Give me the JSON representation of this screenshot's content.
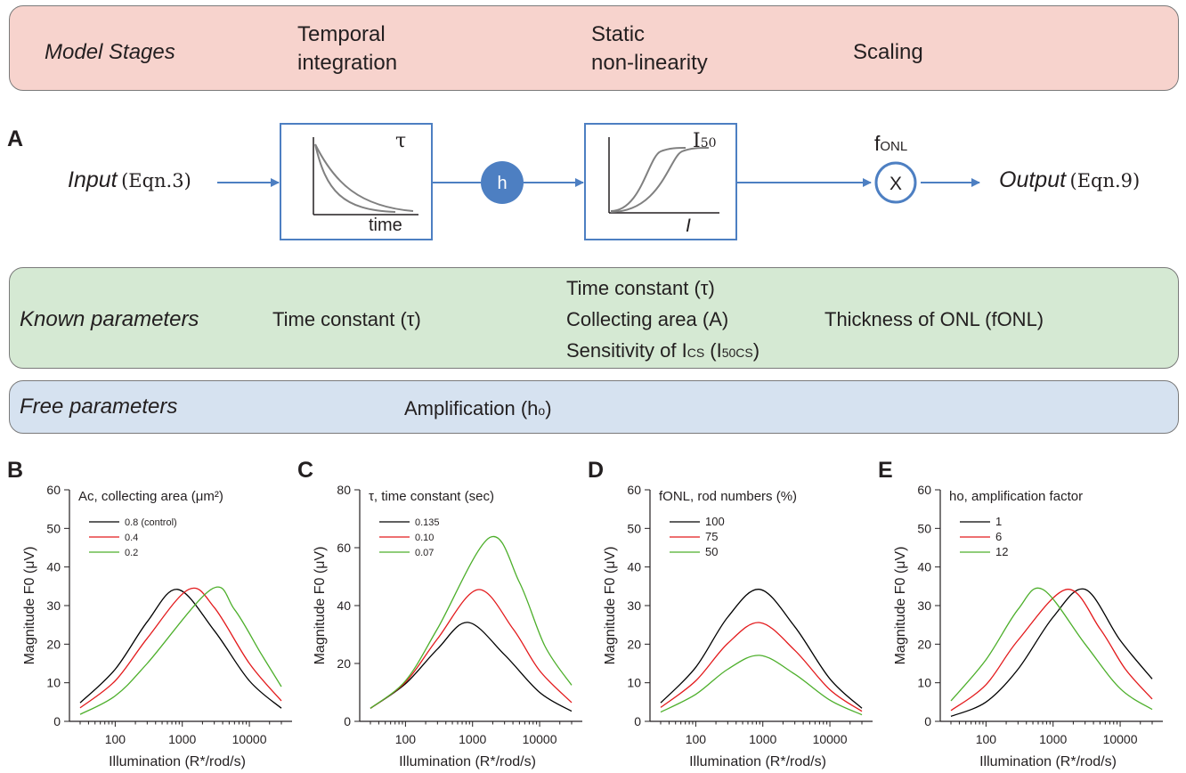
{
  "stages": {
    "title": "Model Stages",
    "temporal": [
      "Temporal",
      "integration"
    ],
    "static": [
      "Static",
      "non-linearity"
    ],
    "scaling": "Scaling"
  },
  "diagram": {
    "panel_label": "A",
    "input_word": "Input",
    "input_eqn": "(Eqn.3)",
    "output_word": "Output",
    "output_eqn": "(Eqn.9)",
    "tau_symbol": "τ",
    "time_label": "time",
    "h_symbol": "h",
    "i50_symbol": "I",
    "i50_sub": "50",
    "i_axis": "I",
    "fonl_main": "f",
    "fonl_sub": "ONL",
    "mult_symbol": "X",
    "accent_color": "#4d7fc2"
  },
  "known": {
    "title": "Known parameters",
    "col1": "Time constant (τ)",
    "col2": [
      "Time constant (τ)",
      "Collecting area (A)"
    ],
    "col2_sens_a": "Sensitivity of I",
    "col2_sens_b": "CS",
    "col2_sens_c": " (I",
    "col2_sens_d": "50CS",
    "col2_sens_e": ")",
    "col3": "Thickness of ONL (fONL)"
  },
  "free": {
    "title": "Free parameters",
    "param": "Amplification (h",
    "param_sub": "o",
    "param_end": ")"
  },
  "chart_data": [
    {
      "panel": "B",
      "type": "line",
      "x_scale": "log",
      "title": "Ac, collecting area (μm²)",
      "xlabel": "Illumination (R*/rod/s)",
      "ylabel": "Magnitude F0 (μV)",
      "xlim": [
        30,
        30000
      ],
      "ylim": [
        0,
        60
      ],
      "yticks": [
        0,
        10,
        20,
        30,
        40,
        50,
        60
      ],
      "xticks": [
        100,
        1000,
        10000
      ],
      "series": [
        {
          "name": "0.8 (control)",
          "color": "#000000",
          "points": [
            [
              30,
              4.8
            ],
            [
              100,
              13.5
            ],
            [
              300,
              25.8
            ],
            [
              850,
              34.2
            ],
            [
              3000,
              23.5
            ],
            [
              10000,
              10.5
            ],
            [
              30000,
              3.4
            ]
          ]
        },
        {
          "name": "0.4",
          "color": "#e31a1c",
          "points": [
            [
              30,
              3.5
            ],
            [
              100,
              10.5
            ],
            [
              300,
              21.5
            ],
            [
              1250,
              34.2
            ],
            [
              3000,
              29.5
            ],
            [
              10000,
              15.0
            ],
            [
              30000,
              5.3
            ]
          ]
        },
        {
          "name": "0.2",
          "color": "#4daf2b",
          "points": [
            [
              30,
              1.8
            ],
            [
              100,
              6.6
            ],
            [
              300,
              15.0
            ],
            [
              2700,
              34.2
            ],
            [
              6000,
              29.0
            ],
            [
              15000,
              17.5
            ],
            [
              30000,
              9.0
            ]
          ]
        }
      ]
    },
    {
      "panel": "C",
      "type": "line",
      "x_scale": "log",
      "title": "τ, time constant (sec)",
      "xlabel": "Illumination (R*/rod/s)",
      "ylabel": "Magnitude F0 (μV)",
      "xlim": [
        30,
        30000
      ],
      "ylim": [
        0,
        80
      ],
      "yticks": [
        0,
        20,
        40,
        60,
        80
      ],
      "xticks": [
        100,
        1000,
        10000
      ],
      "series": [
        {
          "name": "0.135",
          "color": "#000000",
          "points": [
            [
              30,
              4.5
            ],
            [
              100,
              13.0
            ],
            [
              300,
              25.0
            ],
            [
              850,
              34.2
            ],
            [
              3000,
              23.0
            ],
            [
              10000,
              10.0
            ],
            [
              30000,
              3.5
            ]
          ]
        },
        {
          "name": "0.10",
          "color": "#e31a1c",
          "points": [
            [
              30,
              4.5
            ],
            [
              100,
              13.5
            ],
            [
              300,
              28.5
            ],
            [
              1200,
              45.5
            ],
            [
              4000,
              32.0
            ],
            [
              10000,
              17.5
            ],
            [
              30000,
              6.5
            ]
          ]
        },
        {
          "name": "0.07",
          "color": "#4daf2b",
          "points": [
            [
              30,
              4.5
            ],
            [
              100,
              14.0
            ],
            [
              300,
              32.0
            ],
            [
              1800,
              63.5
            ],
            [
              5000,
              48.0
            ],
            [
              12000,
              26.0
            ],
            [
              30000,
              12.5
            ]
          ]
        }
      ]
    },
    {
      "panel": "D",
      "type": "line",
      "x_scale": "log",
      "title": "fONL, rod numbers (%)",
      "xlabel": "Illumination (R*/rod/s)",
      "ylabel": "Magnitude F0 (μV)",
      "xlim": [
        30,
        30000
      ],
      "ylim": [
        0,
        60
      ],
      "yticks": [
        0,
        10,
        20,
        30,
        40,
        50,
        60
      ],
      "xticks": [
        100,
        1000,
        10000
      ],
      "series": [
        {
          "name": "100",
          "color": "#000000",
          "points": [
            [
              30,
              4.8
            ],
            [
              100,
              14.0
            ],
            [
              300,
              27.0
            ],
            [
              900,
              34.2
            ],
            [
              3000,
              24.5
            ],
            [
              10000,
              11.0
            ],
            [
              30000,
              3.4
            ]
          ]
        },
        {
          "name": "75",
          "color": "#e31a1c",
          "points": [
            [
              30,
              3.6
            ],
            [
              100,
              10.5
            ],
            [
              300,
              20.2
            ],
            [
              900,
              25.6
            ],
            [
              3000,
              18.4
            ],
            [
              10000,
              8.2
            ],
            [
              30000,
              2.6
            ]
          ]
        },
        {
          "name": "50",
          "color": "#4daf2b",
          "points": [
            [
              30,
              2.4
            ],
            [
              100,
              7.0
            ],
            [
              300,
              13.5
            ],
            [
              900,
              17.1
            ],
            [
              3000,
              12.2
            ],
            [
              10000,
              5.5
            ],
            [
              30000,
              1.7
            ]
          ]
        }
      ]
    },
    {
      "panel": "E",
      "type": "line",
      "x_scale": "log",
      "title": "ho, amplification factor",
      "xlabel": "Illumination (R*/rod/s)",
      "ylabel": "Magnitude F0 (μV)",
      "xlim": [
        30,
        30000
      ],
      "ylim": [
        0,
        60
      ],
      "yticks": [
        0,
        10,
        20,
        30,
        40,
        50,
        60
      ],
      "xticks": [
        100,
        1000,
        10000
      ],
      "series": [
        {
          "name": "1",
          "color": "#000000",
          "points": [
            [
              30,
              1.3
            ],
            [
              100,
              5.0
            ],
            [
              300,
              13.5
            ],
            [
              1000,
              27.0
            ],
            [
              3000,
              34.2
            ],
            [
              10000,
              21.0
            ],
            [
              30000,
              11.0
            ]
          ]
        },
        {
          "name": "6",
          "color": "#e31a1c",
          "points": [
            [
              30,
              2.8
            ],
            [
              100,
              9.5
            ],
            [
              300,
              21.0
            ],
            [
              1600,
              34.2
            ],
            [
              5000,
              24.0
            ],
            [
              12000,
              13.5
            ],
            [
              30000,
              5.8
            ]
          ]
        },
        {
          "name": "12",
          "color": "#4daf2b",
          "points": [
            [
              30,
              5.3
            ],
            [
              100,
              16.0
            ],
            [
              300,
              29.0
            ],
            [
              700,
              34.2
            ],
            [
              3000,
              20.0
            ],
            [
              10000,
              8.5
            ],
            [
              30000,
              3.1
            ]
          ]
        }
      ]
    }
  ]
}
